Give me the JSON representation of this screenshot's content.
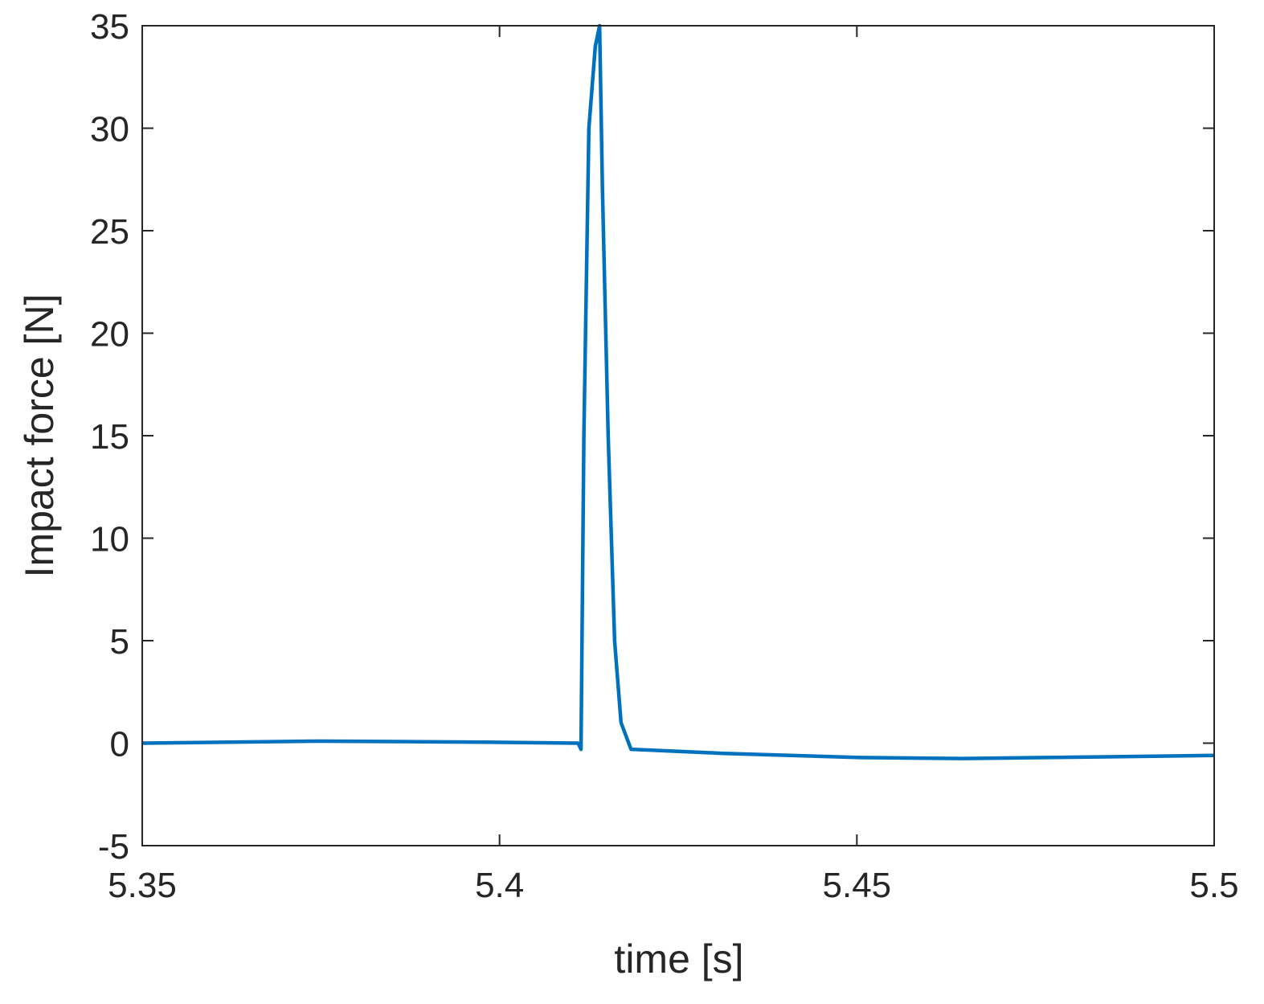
{
  "chart_data": {
    "type": "line",
    "xlabel": "time [s]",
    "ylabel": "Impact force [N]",
    "x": [
      5.35,
      5.375,
      5.3976,
      5.411,
      5.4114,
      5.4118,
      5.4125,
      5.4134,
      5.414,
      5.4144,
      5.4152,
      5.4161,
      5.417,
      5.4184,
      5.4313,
      5.4504,
      5.465,
      5.5
    ],
    "series": [
      {
        "name": "Impact force",
        "color": "#0072bd",
        "values": [
          0,
          0.1,
          0.05,
          0,
          -0.3,
          15,
          30,
          34,
          35,
          27,
          15,
          5,
          1,
          -0.3,
          -0.5,
          -0.7,
          -0.75,
          -0.6
        ]
      }
    ],
    "xlim": [
      5.35,
      5.5
    ],
    "xticks": [
      5.35,
      5.4,
      5.45,
      5.5
    ],
    "ylim": [
      -5,
      35
    ],
    "yticks": [
      -5,
      0,
      5,
      10,
      15,
      20,
      25,
      30,
      35
    ]
  }
}
